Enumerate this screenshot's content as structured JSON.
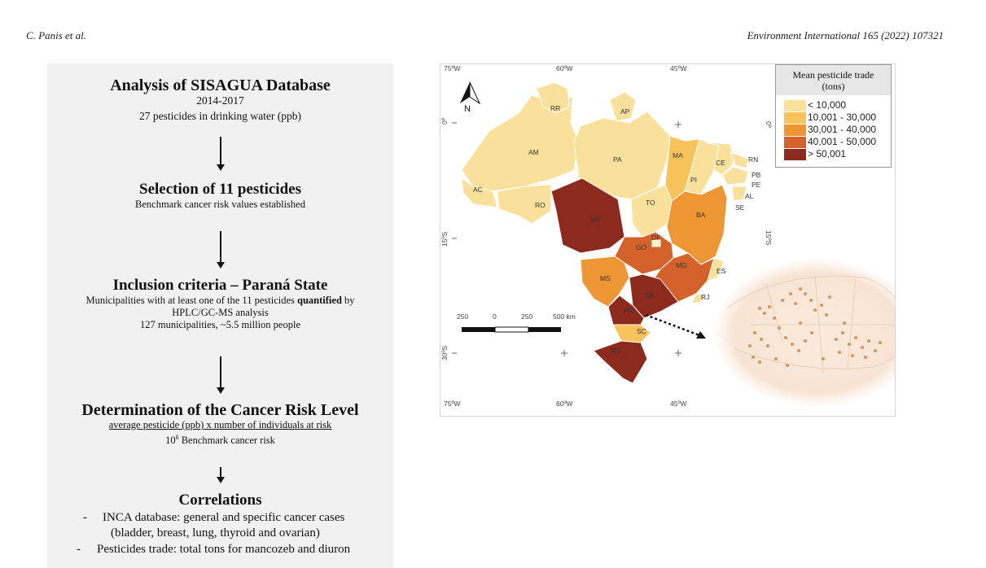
{
  "header": {
    "authors": "C. Panis et al.",
    "journal": "Environment International 165 (2022) 107321"
  },
  "flowchart": {
    "step1": {
      "title": "Analysis of SISAGUA Database",
      "years": "2014-2017",
      "detail": "27 pesticides in drinking water (ppb)"
    },
    "step2": {
      "title": "Selection of 11 pesticides",
      "detail": "Benchmark cancer risk values established"
    },
    "step3": {
      "title": "Inclusion criteria – Paraná State",
      "line1_pre": "Municipalities with at least one of the 11 pesticides ",
      "line1_bold": "quantified",
      "line1_post": " by",
      "line2": "HPLC/GC-MS analysis",
      "line3": "127 municipalities, ~5.5 million people"
    },
    "step4": {
      "title": "Determination of the Cancer Risk Level",
      "formula": "average pesticide (ppb) x number of individuals at risk",
      "benchmark_base": "10",
      "benchmark_exp": "6",
      "benchmark_text": " Benchmark cancer risk"
    },
    "step5": {
      "title": "Correlations",
      "bullet_marker": "-",
      "bullet1_line1": "INCA database: general and specific cancer cases",
      "bullet1_line2": "(bladder, breast, lung, thyroid and ovarian)",
      "bullet2": "Pesticides trade: total tons for mancozeb and diuron"
    }
  },
  "map": {
    "north_label": "N",
    "coords": {
      "top": [
        "75ºW",
        "60ºW",
        "45ºW"
      ],
      "bottom": [
        "75ºW",
        "60ºW",
        "45ºW"
      ],
      "left": [
        "0º",
        "15ºS",
        "30ºS"
      ],
      "right": [
        "0º",
        "15ºS"
      ]
    },
    "scale": {
      "labels": [
        "250",
        "0",
        "250",
        "500 km"
      ]
    },
    "states": {
      "RR": "RR",
      "AP": "AP",
      "AM": "AM",
      "PA": "PA",
      "MA": "MA",
      "CE": "CE",
      "RN": "RN",
      "PB": "PB",
      "PE": "PE",
      "PI": "PI",
      "AL": "AL",
      "SE": "SE",
      "AC": "AC",
      "RO": "RO",
      "TO": "TO",
      "BA": "BA",
      "MT": "MT",
      "DF": "DF",
      "GO": "GO",
      "MG": "MG",
      "ES": "ES",
      "MS": "MS",
      "SP": "SP",
      "RJ": "RJ",
      "PR": "PR",
      "SC": "SC",
      "RS": "RS"
    },
    "legend": {
      "title_line1": "Mean pesticide trade",
      "title_line2": "(tons)",
      "items": [
        {
          "label": "< 10,000",
          "color": "#f9e09b"
        },
        {
          "label": "10,001 - 30,000",
          "color": "#f8c45a"
        },
        {
          "label": "30,001 - 40,000",
          "color": "#ee9534"
        },
        {
          "label": "40,001 - 50,000",
          "color": "#d5622a"
        },
        {
          "label": "> 50,001",
          "color": "#8c2a1d"
        }
      ]
    }
  }
}
